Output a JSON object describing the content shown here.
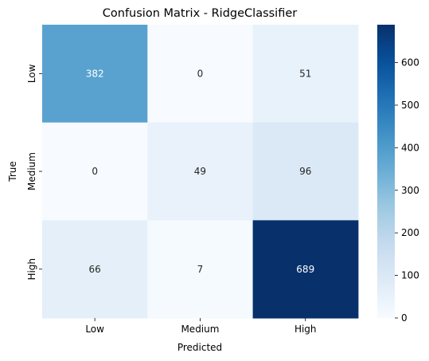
{
  "chart_data": {
    "type": "heatmap",
    "title": "Confusion Matrix - RidgeClassifier",
    "xlabel": "Predicted",
    "ylabel": "True",
    "x_categories": [
      "Low",
      "Medium",
      "High"
    ],
    "y_categories": [
      "Low",
      "Medium",
      "High"
    ],
    "values": [
      [
        382,
        0,
        51
      ],
      [
        0,
        49,
        96
      ],
      [
        66,
        7,
        689
      ]
    ],
    "colormap": "Blues",
    "colorbar": {
      "range": [
        0,
        689
      ],
      "ticks": [
        0,
        100,
        200,
        300,
        400,
        500,
        600
      ]
    }
  }
}
